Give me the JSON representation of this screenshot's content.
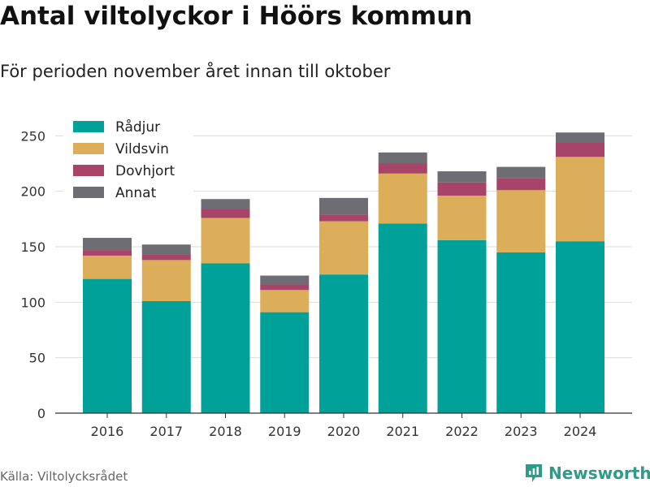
{
  "header": {
    "title": "Antal viltolyckor i Höörs kommun",
    "subtitle": "För perioden november året innan till oktober"
  },
  "footer": {
    "source": "Källa: Viltolycksrådet",
    "brand": "Newsworthy"
  },
  "colors": {
    "radjur": "#00a199",
    "vildsvin": "#dcae5a",
    "dovhjort": "#a8436a",
    "annat": "#6e6d73",
    "grid": "#dddddd",
    "axis": "#333333",
    "brand": "#2e9a8a"
  },
  "chart_data": {
    "type": "bar",
    "stacked": true,
    "categories": [
      "2016",
      "2017",
      "2018",
      "2019",
      "2020",
      "2021",
      "2022",
      "2023",
      "2024"
    ],
    "series": [
      {
        "name": "Rådjur",
        "color": "#00a199",
        "values": [
          121,
          101,
          135,
          91,
          125,
          171,
          156,
          145,
          155
        ]
      },
      {
        "name": "Vildsvin",
        "color": "#dcae5a",
        "values": [
          21,
          37,
          41,
          20,
          48,
          45,
          40,
          56,
          76
        ]
      },
      {
        "name": "Dovhjort",
        "color": "#a8436a",
        "values": [
          5,
          5,
          8,
          5,
          6,
          9,
          12,
          11,
          13
        ]
      },
      {
        "name": "Annat",
        "color": "#6e6d73",
        "values": [
          11,
          9,
          9,
          8,
          15,
          10,
          10,
          10,
          9
        ]
      }
    ],
    "ylim": [
      0,
      270
    ],
    "yticks": [
      0,
      50,
      100,
      150,
      200,
      250
    ],
    "grid": true,
    "legend": "top-left",
    "xlabel": "",
    "ylabel": ""
  }
}
